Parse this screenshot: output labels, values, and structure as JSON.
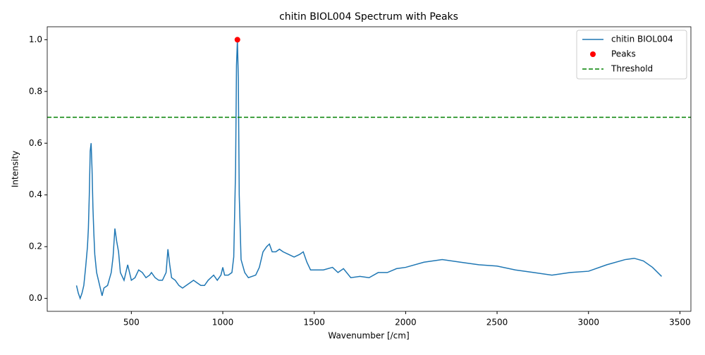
{
  "chart_data": {
    "type": "line",
    "title": "chitin BIOL004 Spectrum with Peaks",
    "x_label": "Wavenumber [/cm]",
    "y_label": "Intensity",
    "xlim": [
      40,
      3560
    ],
    "ylim": [
      -0.05,
      1.05
    ],
    "xticks": [
      500,
      1000,
      1500,
      2000,
      2500,
      3000,
      3500
    ],
    "yticks": [
      {
        "value": 0,
        "label": "0.0"
      },
      0.2,
      0.4,
      0.6,
      0.8,
      {
        "value": 1,
        "label": "1.0"
      }
    ],
    "legend": "upper right",
    "series": [
      {
        "name": "chitin BIOL004",
        "type": "line",
        "color": "#1f77b4",
        "x": [
          200,
          210,
          220,
          230,
          240,
          250,
          260,
          265,
          270,
          275,
          280,
          285,
          290,
          295,
          300,
          310,
          320,
          330,
          340,
          350,
          370,
          390,
          400,
          410,
          420,
          430,
          440,
          460,
          480,
          500,
          520,
          540,
          560,
          580,
          600,
          610,
          630,
          650,
          670,
          690,
          700,
          710,
          720,
          740,
          760,
          780,
          800,
          820,
          840,
          860,
          880,
          900,
          920,
          950,
          970,
          990,
          1000,
          1010,
          1030,
          1050,
          1060,
          1070,
          1075,
          1080,
          1085,
          1090,
          1100,
          1120,
          1140,
          1180,
          1200,
          1220,
          1240,
          1255,
          1270,
          1290,
          1310,
          1330,
          1360,
          1390,
          1420,
          1440,
          1460,
          1480,
          1500,
          1550,
          1600,
          1630,
          1660,
          1700,
          1750,
          1800,
          1850,
          1900,
          1950,
          2000,
          2100,
          2200,
          2300,
          2400,
          2500,
          2600,
          2700,
          2800,
          2900,
          3000,
          3100,
          3200,
          3250,
          3300,
          3350,
          3400
        ],
        "values": [
          0.05,
          0.02,
          0.0,
          0.02,
          0.05,
          0.12,
          0.2,
          0.27,
          0.4,
          0.57,
          0.6,
          0.5,
          0.35,
          0.25,
          0.17,
          0.1,
          0.07,
          0.04,
          0.01,
          0.04,
          0.05,
          0.1,
          0.16,
          0.27,
          0.22,
          0.18,
          0.1,
          0.07,
          0.13,
          0.07,
          0.08,
          0.11,
          0.1,
          0.08,
          0.09,
          0.1,
          0.08,
          0.07,
          0.07,
          0.1,
          0.19,
          0.13,
          0.08,
          0.07,
          0.05,
          0.04,
          0.05,
          0.06,
          0.07,
          0.06,
          0.05,
          0.05,
          0.07,
          0.09,
          0.07,
          0.09,
          0.12,
          0.09,
          0.09,
          0.1,
          0.16,
          0.5,
          0.9,
          1.0,
          0.85,
          0.4,
          0.15,
          0.1,
          0.08,
          0.09,
          0.12,
          0.18,
          0.2,
          0.21,
          0.18,
          0.18,
          0.19,
          0.18,
          0.17,
          0.16,
          0.17,
          0.18,
          0.14,
          0.11,
          0.11,
          0.11,
          0.12,
          0.1,
          0.115,
          0.08,
          0.085,
          0.08,
          0.1,
          0.1,
          0.115,
          0.12,
          0.14,
          0.15,
          0.14,
          0.13,
          0.125,
          0.11,
          0.1,
          0.09,
          0.1,
          0.105,
          0.13,
          0.15,
          0.155,
          0.145,
          0.12,
          0.085
        ]
      },
      {
        "name": "Peaks",
        "type": "scatter",
        "color": "#ff0000",
        "x": [
          1080
        ],
        "values": [
          1.0
        ]
      },
      {
        "name": "Threshold",
        "type": "hline",
        "color": "#008000",
        "values": [
          0.7
        ]
      }
    ]
  }
}
